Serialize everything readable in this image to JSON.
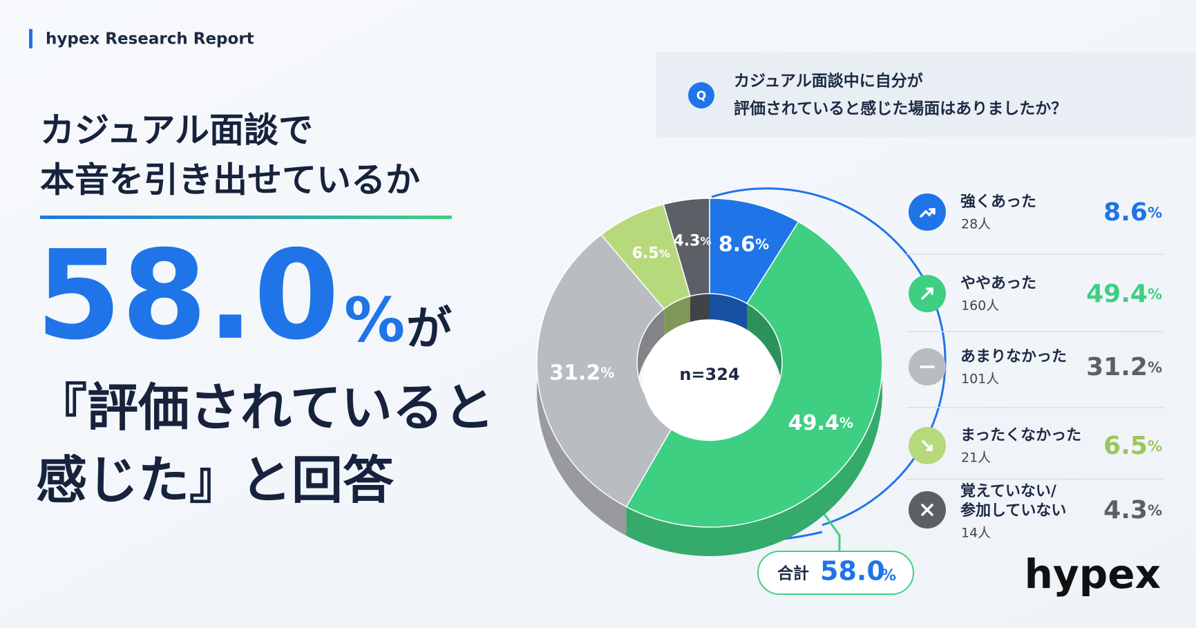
{
  "header": "hypex Research Report",
  "title": [
    "カジュアル面談で",
    "本音を引き出せているか"
  ],
  "headline": {
    "number": "58.0",
    "unit": "%",
    "particle": "が",
    "lines": [
      "『評価されていると",
      "感じた』と回答"
    ]
  },
  "question": {
    "mark": "Q",
    "lines": [
      "カジュアル面談中に自分が",
      "評価されていると感じた場面はありましたか？"
    ]
  },
  "logo": "hypex",
  "chart_data": {
    "type": "donut",
    "categories": [
      "強くあった",
      "ややあった",
      "あまりなかった",
      "まったくなかった",
      "覚えていない/参加していない"
    ],
    "values": [
      8.6,
      49.4,
      31.2,
      6.5,
      4.3
    ],
    "unit": "%",
    "count_labels": [
      "28人",
      "160人",
      "101人",
      "21人",
      "14人"
    ],
    "colors": [
      "#1f74e8",
      "#3fcf82",
      "#b9bcc1",
      "#b6d97c",
      "#5c6066"
    ],
    "center_label": "n=324",
    "total": {
      "label": "合計",
      "value": "58.0",
      "unit": "%"
    }
  }
}
